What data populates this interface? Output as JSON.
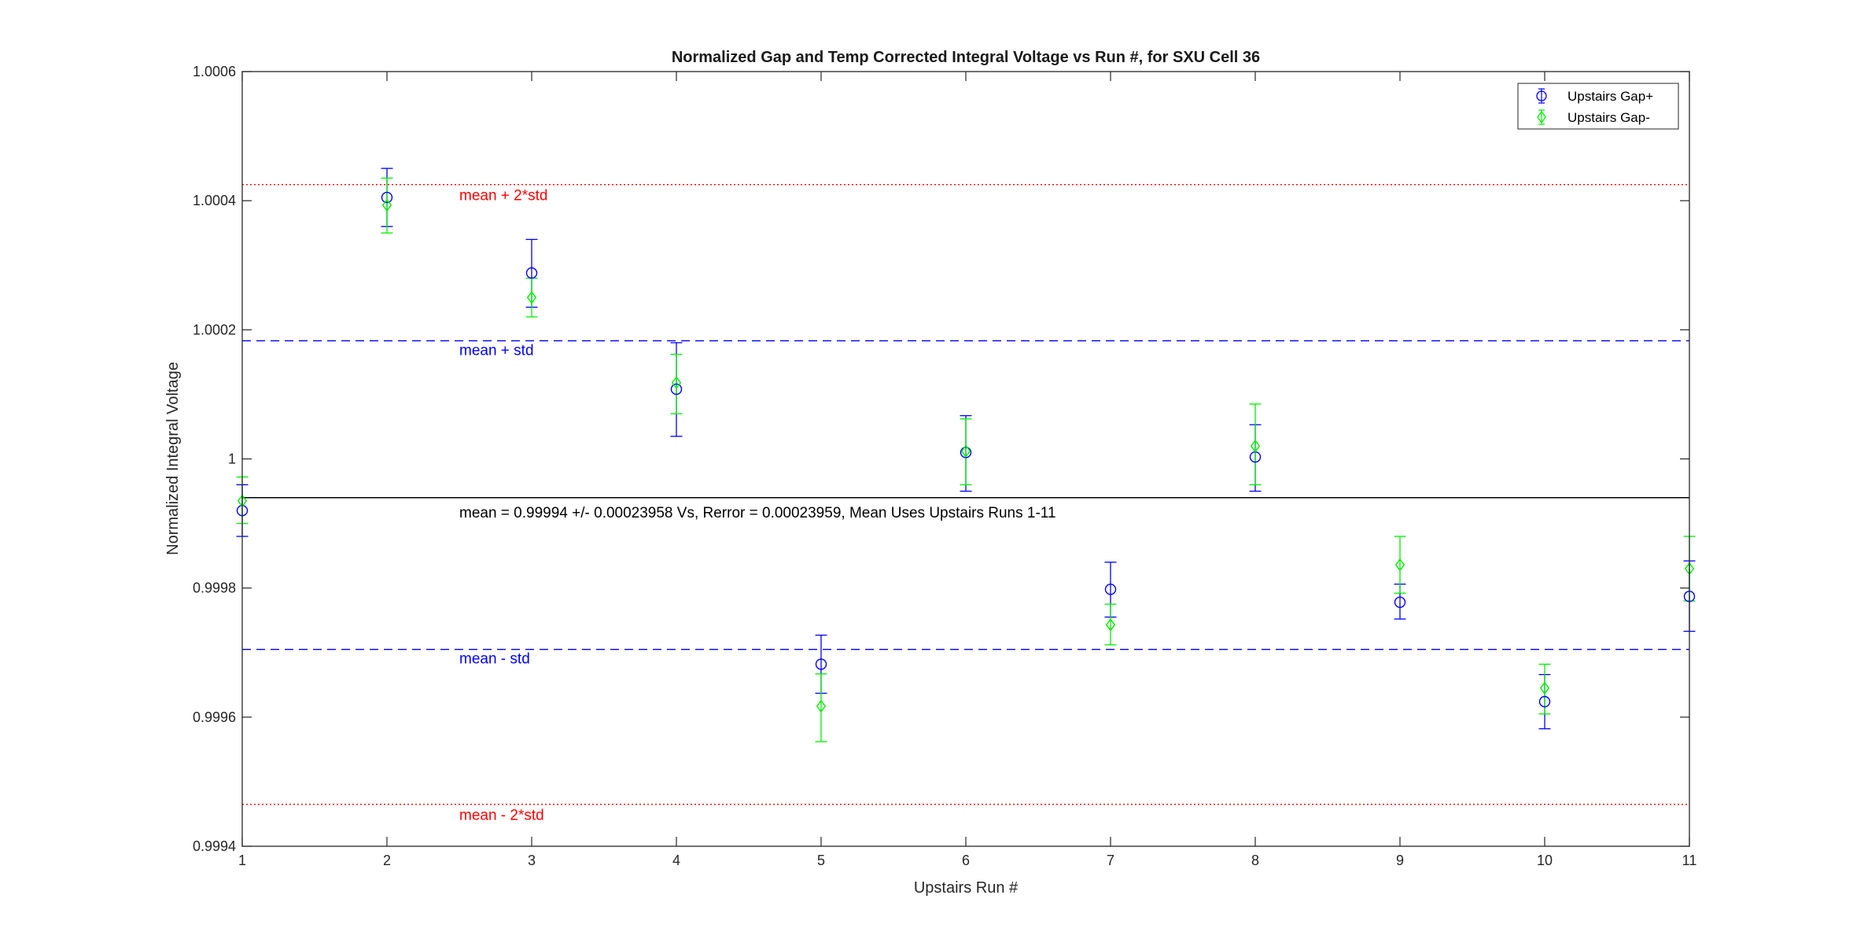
{
  "chart_data": {
    "type": "scatter",
    "title": "Normalized Gap and Temp Corrected Integral Voltage vs Run #, for SXU Cell 36",
    "xlabel": "Upstairs Run #",
    "ylabel": "Normalized Integral Voltage",
    "xlim": [
      1,
      11
    ],
    "ylim": [
      0.9994,
      1.0006
    ],
    "xticks": [
      1,
      2,
      3,
      4,
      5,
      6,
      7,
      8,
      9,
      10,
      11
    ],
    "xtick_labels": [
      "1",
      "2",
      "3",
      "4",
      "5",
      "6",
      "7",
      "8",
      "9",
      "10",
      "11"
    ],
    "yticks": [
      0.9994,
      0.9996,
      0.9998,
      1.0,
      1.0002,
      1.0004,
      1.0006
    ],
    "ytick_labels": [
      "0.9994",
      "0.9996",
      "0.9998",
      "1",
      "1.0002",
      "1.0004",
      "1.0006"
    ],
    "grid": false,
    "legend_position": "top-right",
    "series": [
      {
        "name": "Upstairs Gap+",
        "marker": "circle",
        "color": "#0000ff",
        "x": [
          1,
          2,
          3,
          4,
          5,
          6,
          7,
          8,
          9,
          10,
          11
        ],
        "y": [
          0.99992,
          1.000405,
          1.000288,
          1.000108,
          0.999682,
          1.00001,
          0.999798,
          1.000003,
          0.999778,
          0.999624,
          0.999787
        ],
        "err_low": [
          0.99988,
          1.00036,
          1.000235,
          1.000035,
          0.999637,
          0.99995,
          0.999755,
          0.99995,
          0.999752,
          0.999582,
          0.999733
        ],
        "err_high": [
          0.99996,
          1.00045,
          1.00034,
          1.00018,
          0.999727,
          1.000067,
          0.99984,
          1.000053,
          0.999806,
          0.999666,
          0.999842
        ]
      },
      {
        "name": "Upstairs Gap-",
        "marker": "diamond",
        "color": "#00ee00",
        "x": [
          1,
          2,
          3,
          4,
          5,
          6,
          7,
          8,
          9,
          10,
          11
        ],
        "y": [
          0.999935,
          1.000393,
          1.00025,
          1.000118,
          0.999617,
          1.000012,
          0.999743,
          1.00002,
          0.999836,
          0.999645,
          0.99983
        ],
        "err_low": [
          0.9999,
          1.00035,
          1.00022,
          1.00007,
          0.999562,
          0.99996,
          0.999712,
          0.99996,
          0.999792,
          0.999605,
          0.99978
        ],
        "err_high": [
          0.999972,
          1.000435,
          1.00028,
          1.000162,
          0.999667,
          1.000062,
          0.999775,
          1.000085,
          0.99988,
          0.999682,
          0.99988
        ]
      }
    ],
    "reference_lines": [
      {
        "label": "mean + 2*std",
        "y": 1.000425,
        "style": "dotted",
        "color": "#ff0000"
      },
      {
        "label": "mean + std",
        "y": 1.000183,
        "style": "dashed",
        "color": "#0000ff"
      },
      {
        "label": "mean = 0.99994 +/- 0.00023958 Vs, Rerror = 0.00023959, Mean Uses Upstairs Runs 1-11",
        "y": 0.99994,
        "style": "solid",
        "color": "#000000"
      },
      {
        "label": "mean - std",
        "y": 0.999705,
        "style": "dashed",
        "color": "#0000ff"
      },
      {
        "label": "mean - 2*std",
        "y": 0.999465,
        "style": "dotted",
        "color": "#ff0000"
      }
    ]
  }
}
